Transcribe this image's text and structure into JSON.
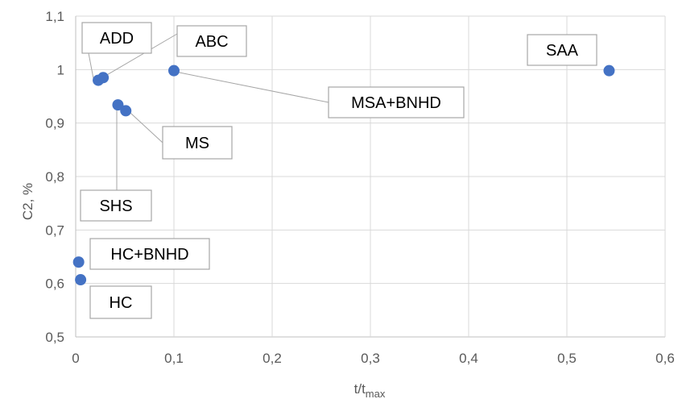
{
  "chart_data": {
    "type": "scatter",
    "title": "",
    "xlabel": "t/t",
    "xlabel_sub": "max",
    "ylabel": "C2, %",
    "xlim": [
      0,
      0.6
    ],
    "ylim": [
      0.5,
      1.1
    ],
    "x_ticks": [
      "0",
      "0,1",
      "0,2",
      "0,3",
      "0,4",
      "0,5",
      "0,6"
    ],
    "y_ticks": [
      "0,5",
      "0,6",
      "0,7",
      "0,8",
      "0,9",
      "1",
      "1,1"
    ],
    "grid": true,
    "legend": "none",
    "marker_color": "#4472c4",
    "points": [
      {
        "label": "ADD",
        "x": 0.023,
        "y": 0.98
      },
      {
        "label": "ABC",
        "x": 0.028,
        "y": 0.985
      },
      {
        "label": "MSA+BNHD",
        "x": 0.1,
        "y": 0.998
      },
      {
        "label": "SAA",
        "x": 0.543,
        "y": 0.998
      },
      {
        "label": "SHS",
        "x": 0.043,
        "y": 0.934
      },
      {
        "label": "MS",
        "x": 0.051,
        "y": 0.923
      },
      {
        "label": "HC+BNHD",
        "x": 0.003,
        "y": 0.64
      },
      {
        "label": "HC",
        "x": 0.005,
        "y": 0.607
      }
    ]
  }
}
